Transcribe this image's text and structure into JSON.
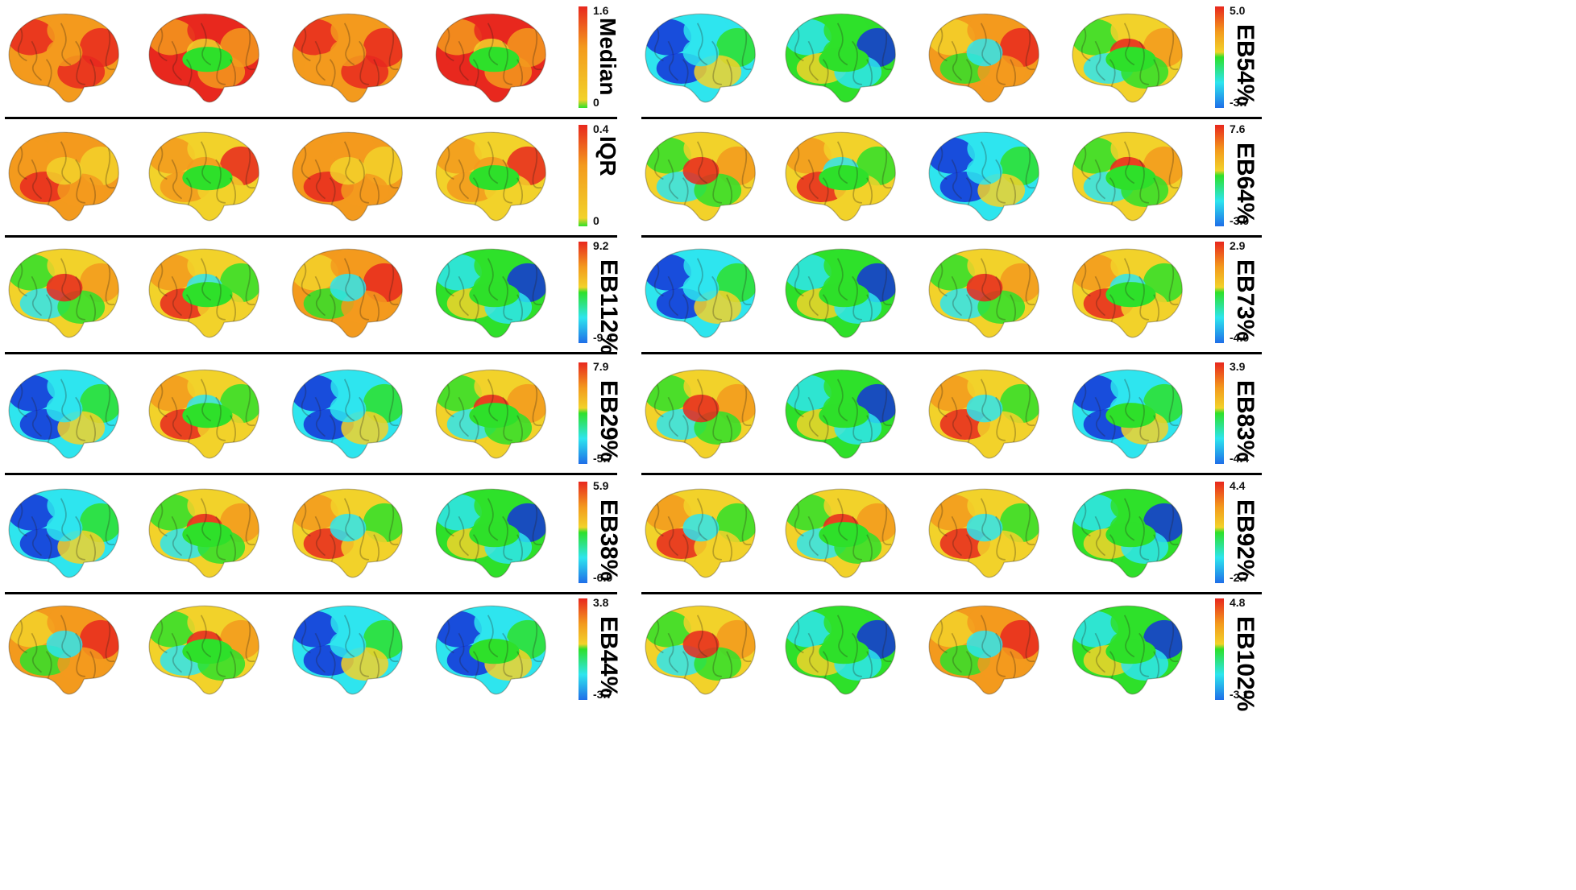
{
  "panels": [
    {
      "name": "Median",
      "pct": "",
      "max": "1.6",
      "min": "0",
      "scale": "sequential",
      "patterns": [
        "hot",
        "hotmed",
        "hot",
        "hotmed"
      ]
    },
    {
      "name": "IQR",
      "pct": "",
      "max": "0.4",
      "min": "0",
      "scale": "sequential",
      "patterns": [
        "warm",
        "warmmed",
        "warm",
        "warmmed"
      ]
    },
    {
      "name": "EB1",
      "pct": "12%",
      "max": "9.2",
      "min": "-9.4",
      "scale": "diverging",
      "patterns": [
        "a",
        "b",
        "c",
        "d"
      ]
    },
    {
      "name": "EB2",
      "pct": "9%",
      "max": "7.9",
      "min": "-5.7",
      "scale": "diverging",
      "patterns": [
        "cool",
        "b",
        "cool",
        "a"
      ]
    },
    {
      "name": "EB3",
      "pct": "8%",
      "max": "5.9",
      "min": "-6.9",
      "scale": "diverging",
      "patterns": [
        "cool",
        "a",
        "b",
        "d"
      ]
    },
    {
      "name": "EB4",
      "pct": "4%",
      "max": "3.8",
      "min": "-3.7",
      "scale": "diverging",
      "patterns": [
        "c",
        "a",
        "cool",
        "cool"
      ]
    },
    {
      "name": "EB5",
      "pct": "4%",
      "max": "5.0",
      "min": "-3.7",
      "scale": "diverging",
      "patterns": [
        "cool",
        "d",
        "c",
        "a"
      ]
    },
    {
      "name": "EB6",
      "pct": "4%",
      "max": "7.6",
      "min": "-3.0",
      "scale": "diverging",
      "patterns": [
        "a",
        "b",
        "cool",
        "a"
      ]
    },
    {
      "name": "EB7",
      "pct": "3%",
      "max": "2.9",
      "min": "-4.0",
      "scale": "diverging",
      "patterns": [
        "cool",
        "d",
        "a",
        "b"
      ]
    },
    {
      "name": "EB8",
      "pct": "3%",
      "max": "3.9",
      "min": "-4.4",
      "scale": "diverging",
      "patterns": [
        "a",
        "d",
        "b",
        "cool"
      ]
    },
    {
      "name": "EB9",
      "pct": "2%",
      "max": "4.4",
      "min": "-2.7",
      "scale": "diverging",
      "patterns": [
        "b",
        "a",
        "b",
        "d"
      ]
    },
    {
      "name": "EB10",
      "pct": "2%",
      "max": "4.8",
      "min": "-3.1",
      "scale": "diverging",
      "patterns": [
        "a",
        "d",
        "c",
        "d"
      ]
    }
  ],
  "colors": {
    "red": "#e8281e",
    "orange": "#f39a1d",
    "yellow": "#f2d22a",
    "green": "#2ee02a",
    "cyan": "#2ee5ee",
    "blue": "#1432d8",
    "separator": "#000000"
  }
}
